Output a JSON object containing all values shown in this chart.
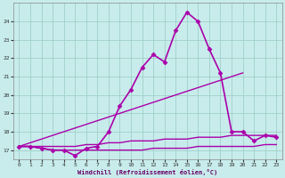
{
  "xlabel": "Windchill (Refroidissement éolien,°C)",
  "xlim": [
    -0.5,
    23.5
  ],
  "ylim": [
    16.5,
    25.0
  ],
  "yticks": [
    17,
    18,
    19,
    20,
    21,
    22,
    23,
    24
  ],
  "xticks": [
    0,
    1,
    2,
    3,
    4,
    5,
    6,
    7,
    8,
    9,
    10,
    11,
    12,
    13,
    14,
    15,
    16,
    17,
    18,
    19,
    20,
    21,
    22,
    23
  ],
  "bg_color": "#c8ecec",
  "grid_color": "#a0d0c8",
  "line_color": "#aa00aa",
  "line1": {
    "x": [
      0,
      1,
      2,
      3,
      4,
      5,
      6,
      7,
      8,
      9,
      10,
      11,
      12,
      13,
      14,
      15,
      16,
      17,
      18,
      19,
      20,
      21,
      22,
      23
    ],
    "y": [
      17.2,
      17.2,
      17.1,
      17.0,
      17.0,
      17.0,
      17.0,
      17.0,
      17.0,
      17.0,
      17.0,
      17.0,
      17.1,
      17.1,
      17.1,
      17.1,
      17.2,
      17.2,
      17.2,
      17.2,
      17.2,
      17.2,
      17.3,
      17.3
    ],
    "lw": 1.0
  },
  "line2": {
    "x": [
      0,
      1,
      2,
      3,
      4,
      5,
      6,
      7,
      8,
      9,
      10,
      11,
      12,
      13,
      14,
      15,
      16,
      17,
      18,
      19,
      20,
      21,
      22,
      23
    ],
    "y": [
      17.2,
      17.2,
      17.2,
      17.2,
      17.2,
      17.2,
      17.3,
      17.3,
      17.4,
      17.4,
      17.5,
      17.5,
      17.5,
      17.6,
      17.6,
      17.6,
      17.7,
      17.7,
      17.7,
      17.8,
      17.8,
      17.8,
      17.8,
      17.8
    ],
    "lw": 1.0
  },
  "line3": {
    "x": [
      0,
      20
    ],
    "y": [
      17.2,
      21.2
    ],
    "lw": 1.0
  },
  "line4": {
    "x": [
      0,
      1,
      2,
      3,
      4,
      5,
      6,
      7,
      8,
      9,
      10,
      11,
      12,
      13,
      14,
      15,
      16,
      17,
      18,
      19,
      20,
      21,
      22,
      23
    ],
    "y": [
      17.2,
      17.2,
      17.1,
      17.0,
      17.0,
      16.7,
      17.1,
      17.2,
      18.0,
      19.4,
      20.3,
      21.5,
      22.2,
      21.8,
      23.5,
      24.5,
      24.0,
      22.5,
      21.2,
      18.0,
      18.0,
      17.5,
      17.8,
      17.7
    ],
    "lw": 1.2
  }
}
